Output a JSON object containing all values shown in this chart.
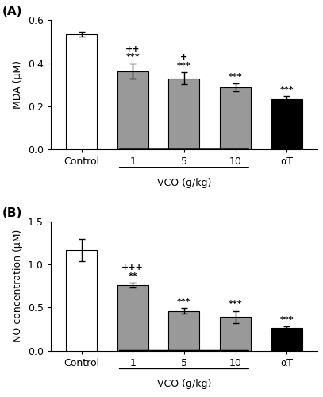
{
  "panel_A": {
    "title": "(A)",
    "ylabel": "MDA (μM)",
    "xlabel": "VCO (g/kg)",
    "categories": [
      "Control",
      "1",
      "5",
      "10",
      "αT"
    ],
    "values": [
      0.535,
      0.362,
      0.33,
      0.288,
      0.232
    ],
    "errors": [
      0.01,
      0.035,
      0.028,
      0.018,
      0.015
    ],
    "bar_colors": [
      "white",
      "#999999",
      "#999999",
      "#999999",
      "black"
    ],
    "bar_edgecolors": [
      "black",
      "black",
      "black",
      "black",
      "black"
    ],
    "ylim": [
      0,
      0.6
    ],
    "yticks": [
      0.0,
      0.2,
      0.4,
      0.6
    ],
    "significance_above": [
      "",
      "***\n++",
      "***\n+",
      "***",
      "***"
    ],
    "vco_bar_indices": [
      1,
      2,
      3
    ]
  },
  "panel_B": {
    "title": "(B)",
    "ylabel": "NO concentration (μM)",
    "xlabel": "VCO (g/kg)",
    "categories": [
      "Control",
      "1",
      "5",
      "10",
      "αT"
    ],
    "values": [
      1.17,
      0.76,
      0.46,
      0.39,
      0.26
    ],
    "errors": [
      0.13,
      0.03,
      0.03,
      0.07,
      0.02
    ],
    "bar_colors": [
      "white",
      "#999999",
      "#999999",
      "#999999",
      "black"
    ],
    "bar_edgecolors": [
      "black",
      "black",
      "black",
      "black",
      "black"
    ],
    "ylim": [
      0,
      1.5
    ],
    "yticks": [
      0.0,
      0.5,
      1.0,
      1.5
    ],
    "significance_above": [
      "",
      "**\n+++",
      "***",
      "***",
      "***"
    ],
    "vco_bar_indices": [
      1,
      2,
      3
    ]
  }
}
